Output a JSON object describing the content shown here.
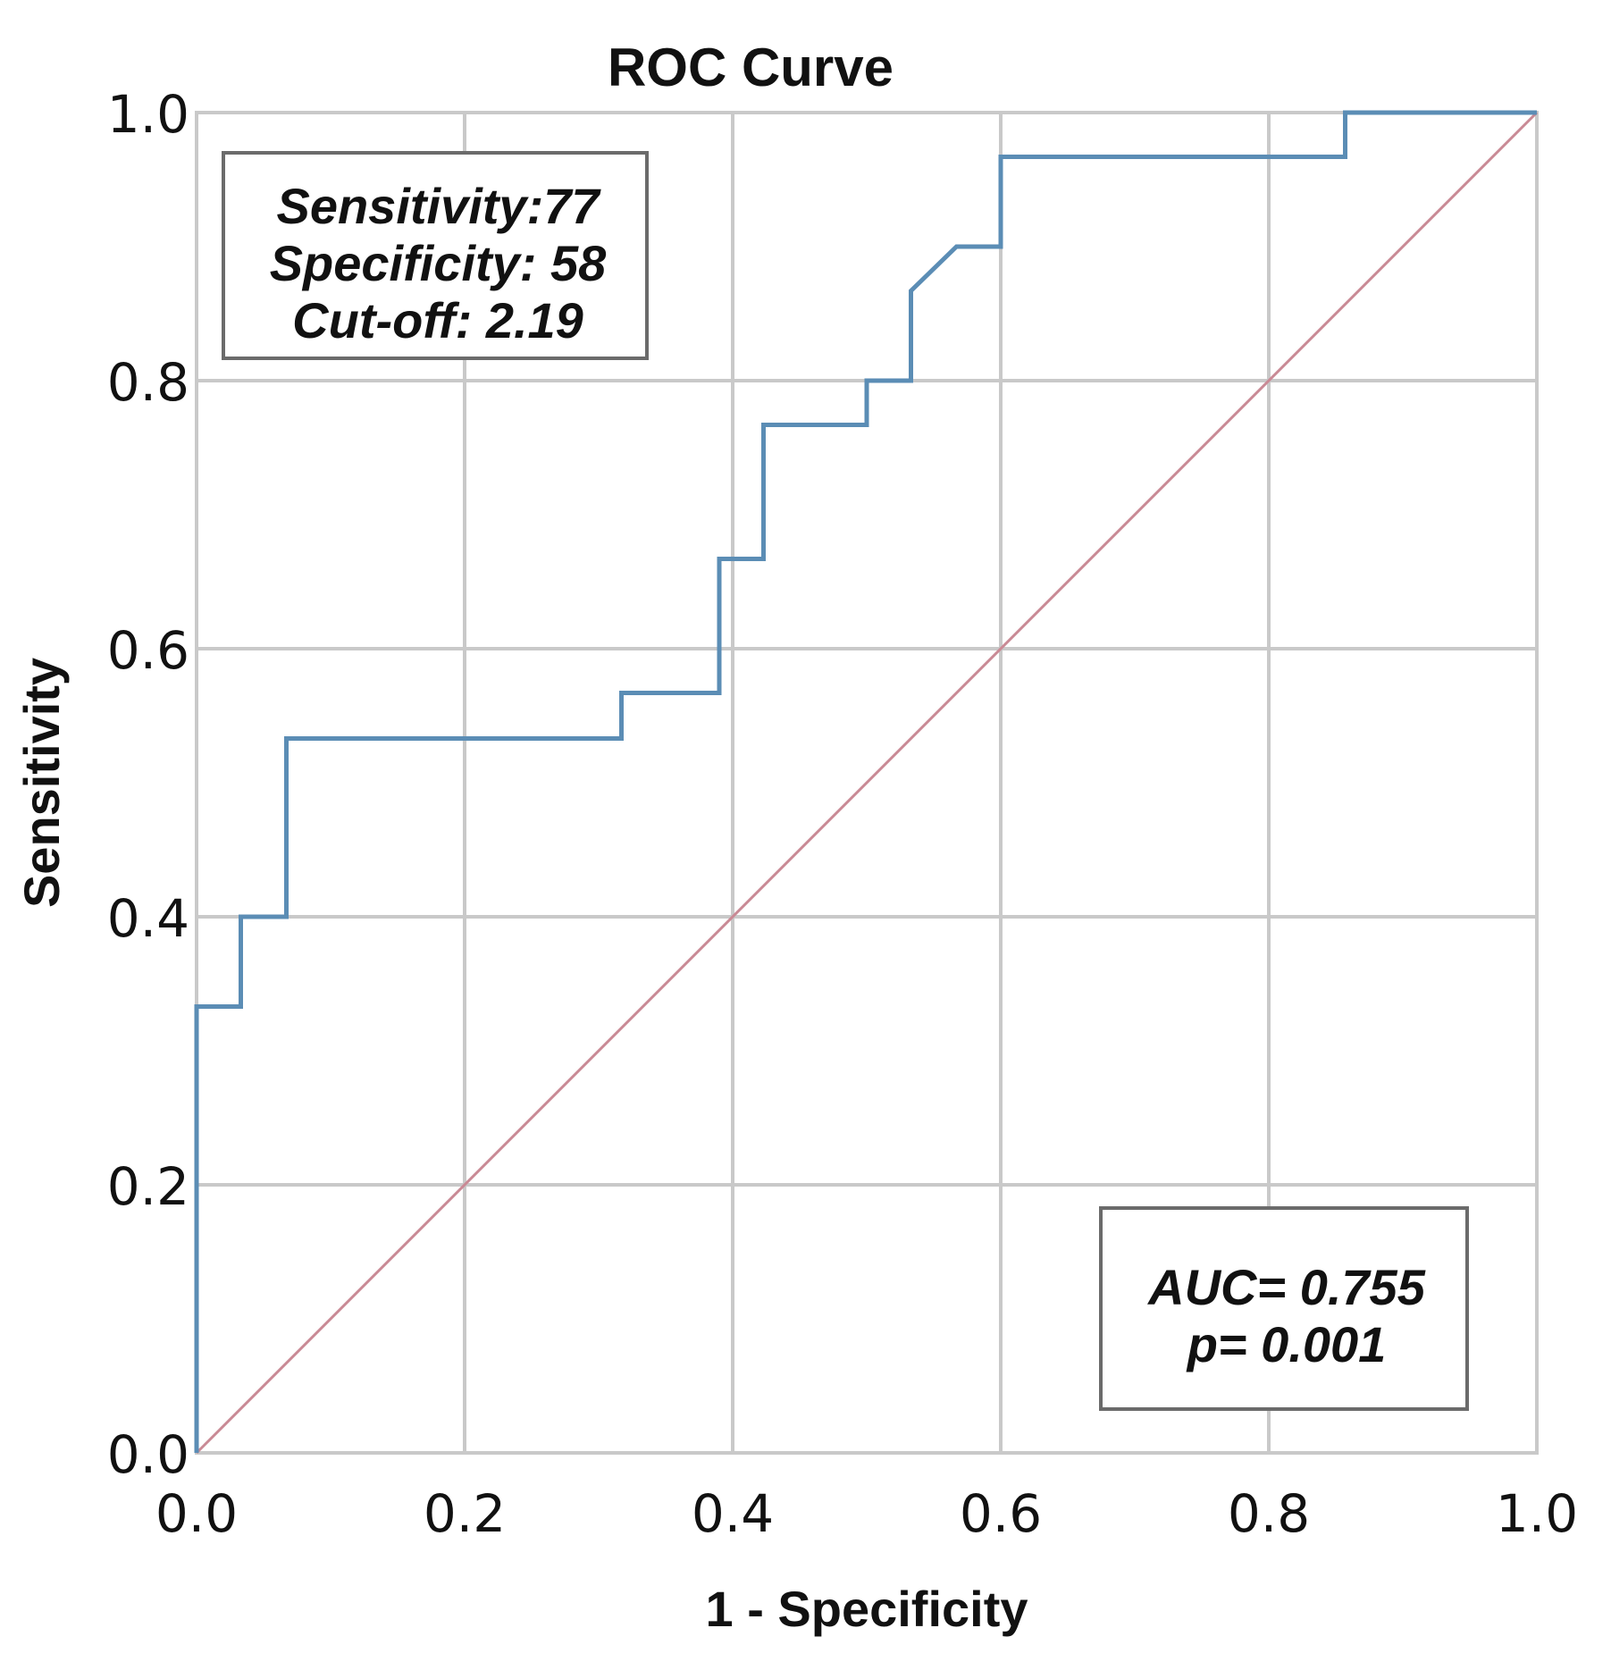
{
  "chart_data": {
    "type": "line",
    "title": "ROC Curve",
    "xlabel": "1 - Specificity",
    "ylabel": "Sensitivity",
    "xlim": [
      0,
      1
    ],
    "ylim": [
      0,
      1
    ],
    "xticks": [
      "0.0",
      "0.2",
      "0.4",
      "0.6",
      "0.8",
      "1.0"
    ],
    "yticks": [
      "0.0",
      "0.2",
      "0.4",
      "0.6",
      "0.8",
      "1.0"
    ],
    "grid": true,
    "series": [
      {
        "color": "#5b8db5",
        "style": "step",
        "x": [
          0.0,
          0.0,
          0.033,
          0.033,
          0.067,
          0.067,
          0.317,
          0.317,
          0.39,
          0.39,
          0.423,
          0.423,
          0.5,
          0.5,
          0.533,
          0.533,
          0.567,
          0.6,
          0.6,
          0.857,
          0.857,
          1.0
        ],
        "y": [
          0.0,
          0.333,
          0.333,
          0.4,
          0.4,
          0.533,
          0.533,
          0.567,
          0.567,
          0.667,
          0.667,
          0.767,
          0.767,
          0.8,
          0.8,
          0.867,
          0.9,
          0.9,
          0.967,
          0.967,
          1.0,
          1.0
        ]
      },
      {
        "color": "#c98a95",
        "style": "reference",
        "x": [
          0.0,
          1.0
        ],
        "y": [
          0.0,
          1.0
        ]
      }
    ],
    "annotations": {
      "top_left": [
        "Sensitivity:77",
        "Specificity: 58",
        "Cut-off: 2.19"
      ],
      "bottom_right": [
        "AUC= 0.755",
        "p= 0.001"
      ]
    }
  }
}
